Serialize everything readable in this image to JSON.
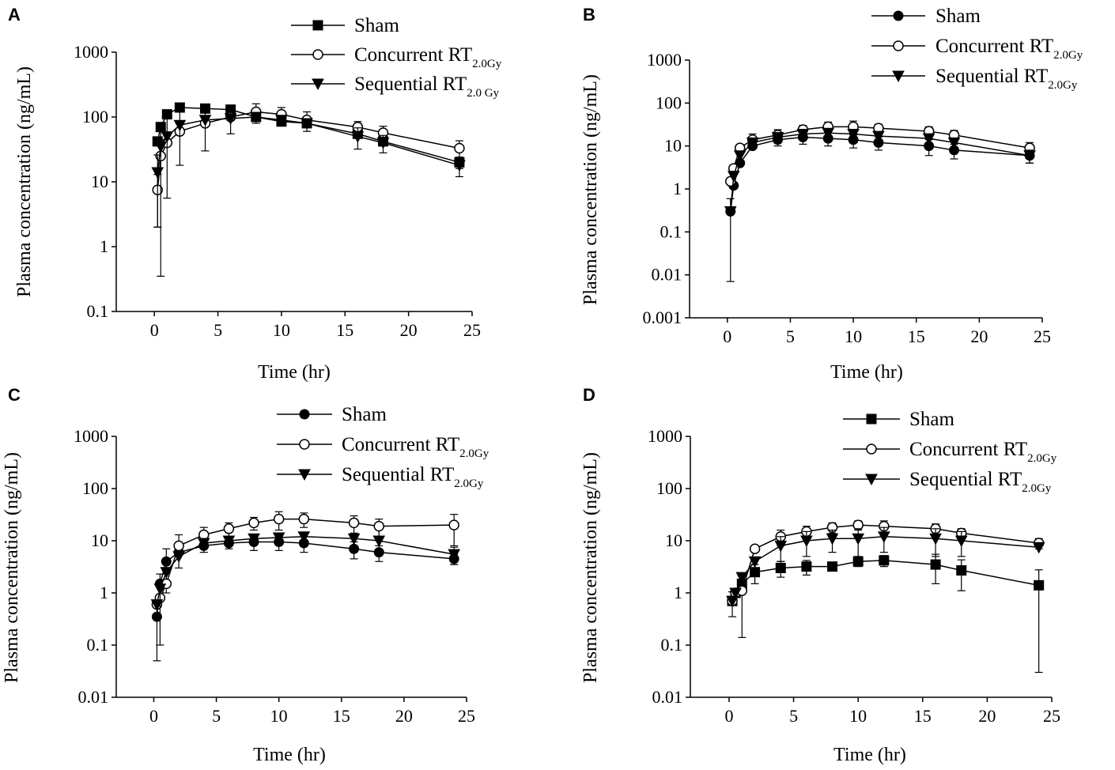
{
  "chart_data": [
    {
      "type": "line",
      "panel": "A",
      "xlabel": "Time (hr)",
      "ylabel": "Plasma concentration (ng/mL)",
      "yscale": "log",
      "xlim": [
        -3,
        25
      ],
      "xticks": [
        0,
        5,
        10,
        15,
        20,
        25
      ],
      "ylim": [
        0.1,
        1000
      ],
      "yticks": [
        "0.1",
        "1",
        "10",
        "100",
        "1000"
      ],
      "legend": [
        {
          "marker": "square",
          "text": "Sham",
          "sub": ""
        },
        {
          "marker": "circle-open",
          "text": "Concurrent RT",
          "sub": "2.0Gy"
        },
        {
          "marker": "triangle-down",
          "text": "Sequential RT",
          "sub": "2.0 Gy"
        }
      ],
      "series": [
        {
          "name": "Sham",
          "marker": "square",
          "x": [
            0.25,
            0.5,
            1,
            2,
            4,
            6,
            8,
            10,
            12,
            16,
            18,
            24
          ],
          "y": [
            42,
            70,
            110,
            140,
            135,
            130,
            100,
            85,
            80,
            55,
            42,
            20
          ],
          "err": [
            0,
            0,
            0,
            10,
            10,
            15,
            10,
            12,
            10,
            8,
            6,
            4
          ]
        },
        {
          "name": "Concurrent RT2.0Gy",
          "marker": "circle-open",
          "x": [
            0.25,
            0.5,
            1,
            2,
            4,
            6,
            8,
            10,
            12,
            16,
            18,
            24
          ],
          "y": [
            7.5,
            25,
            40,
            60,
            80,
            100,
            120,
            110,
            90,
            70,
            57,
            33
          ],
          "err": [
            5.5,
            0,
            0,
            0,
            0,
            0,
            40,
            30,
            30,
            15,
            15,
            10
          ]
        },
        {
          "name": "Sequential RT2.0 Gy",
          "marker": "triangle-down",
          "x": [
            0.25,
            0.5,
            1,
            2,
            4,
            6,
            8,
            10,
            12,
            16,
            18,
            24
          ],
          "y": [
            14,
            35,
            50,
            75,
            90,
            95,
            100,
            90,
            80,
            50,
            40,
            18
          ],
          "err": [
            12,
            34.65,
            44.4,
            57,
            60,
            40,
            0,
            0,
            0,
            18,
            12,
            6
          ]
        }
      ]
    },
    {
      "type": "line",
      "panel": "B",
      "xlabel": "Time (hr)",
      "ylabel": "Plasma concentration (ng/mL)",
      "yscale": "log",
      "xlim": [
        -3,
        25
      ],
      "xticks": [
        0,
        5,
        10,
        15,
        20,
        25
      ],
      "ylim": [
        0.001,
        1000
      ],
      "yticks": [
        "0.001",
        "0.01",
        "0.1",
        "1",
        "10",
        "100",
        "1000"
      ],
      "legend": [
        {
          "marker": "circle-filled",
          "text": "Sham",
          "sub": ""
        },
        {
          "marker": "circle-open",
          "text": "Concurrent RT",
          "sub": "2.0Gy"
        },
        {
          "marker": "triangle-down",
          "text": "Sequential RT",
          "sub": "2.0Gy"
        }
      ],
      "series": [
        {
          "name": "Sham",
          "marker": "circle-filled",
          "x": [
            0.25,
            0.5,
            1,
            2,
            4,
            6,
            8,
            10,
            12,
            16,
            18,
            24
          ],
          "y": [
            0.3,
            1.2,
            4,
            10,
            14,
            16,
            15,
            14,
            12,
            10,
            8,
            6
          ],
          "err": [
            0.293,
            0,
            0,
            0,
            4,
            5,
            5,
            5,
            4,
            4,
            3,
            2
          ]
        },
        {
          "name": "Concurrent RT2.0Gy",
          "marker": "circle-open",
          "x": [
            0.25,
            0.5,
            1,
            2,
            4,
            6,
            8,
            10,
            12,
            16,
            18,
            24
          ],
          "y": [
            1.5,
            3,
            9,
            14,
            18,
            24,
            28,
            28,
            26,
            22,
            18,
            9
          ],
          "err": [
            0,
            0,
            0,
            5,
            6,
            6,
            8,
            10,
            6,
            6,
            5,
            3
          ]
        },
        {
          "name": "Sequential RT2.0Gy",
          "marker": "triangle-down",
          "x": [
            0.25,
            0.5,
            1,
            2,
            4,
            6,
            8,
            10,
            12,
            16,
            18,
            24
          ],
          "y": [
            0.3,
            2,
            6,
            12,
            16,
            19,
            20,
            19,
            17,
            15,
            12,
            6
          ],
          "err": [
            0,
            0,
            0,
            0,
            0,
            0,
            0,
            0,
            0,
            0,
            0,
            2
          ]
        }
      ]
    },
    {
      "type": "line",
      "panel": "C",
      "xlabel": "Time (hr)",
      "ylabel": "Plasma concentration (ng/mL)",
      "yscale": "log",
      "xlim": [
        -3,
        25
      ],
      "xticks": [
        0,
        5,
        10,
        15,
        20,
        25
      ],
      "ylim": [
        0.01,
        1000
      ],
      "yticks": [
        "0.01",
        "0.1",
        "1",
        "10",
        "100",
        "1000"
      ],
      "legend": [
        {
          "marker": "circle-filled",
          "text": "Sham",
          "sub": ""
        },
        {
          "marker": "circle-open",
          "text": "Concurrent RT",
          "sub": "2.0Gy"
        },
        {
          "marker": "triangle-down",
          "text": "Sequential RT",
          "sub": "2.0Gy"
        }
      ],
      "series": [
        {
          "name": "Sham",
          "marker": "circle-filled",
          "x": [
            0.25,
            0.5,
            1,
            2,
            4,
            6,
            8,
            10,
            12,
            16,
            18,
            24
          ],
          "y": [
            0.35,
            1.5,
            4,
            6,
            8,
            9,
            9.5,
            9.5,
            9,
            7,
            6,
            4.5
          ],
          "err": [
            0.3,
            0,
            3,
            0,
            2,
            2,
            3,
            3,
            3,
            2.5,
            2,
            1
          ]
        },
        {
          "name": "Concurrent RT2.0Gy",
          "marker": "circle-open",
          "x": [
            0.25,
            0.5,
            1,
            2,
            4,
            6,
            8,
            10,
            12,
            16,
            18,
            24
          ],
          "y": [
            0.6,
            0.8,
            1.5,
            8,
            13,
            17,
            22,
            26,
            26,
            22,
            19,
            20
          ],
          "err": [
            0,
            0,
            0,
            5,
            5,
            5,
            6,
            10,
            8,
            8,
            7,
            12
          ]
        },
        {
          "name": "Sequential RT2.0Gy",
          "marker": "triangle-down",
          "x": [
            0.25,
            0.5,
            1,
            2,
            4,
            6,
            8,
            10,
            12,
            16,
            18,
            24
          ],
          "y": [
            0.6,
            1.2,
            2.5,
            5,
            9,
            10,
            11,
            11.5,
            12,
            11,
            10,
            5.5
          ],
          "err": [
            0,
            1.1,
            0,
            0,
            0,
            0,
            0,
            0,
            0,
            0,
            0,
            2
          ]
        }
      ]
    },
    {
      "type": "line",
      "panel": "D",
      "xlabel": "Time (hr)",
      "ylabel": "Plasma concentration (ng/mL)",
      "yscale": "log",
      "xlim": [
        -3,
        25
      ],
      "xticks": [
        0,
        5,
        10,
        15,
        20,
        25
      ],
      "ylim": [
        0.01,
        1000
      ],
      "yticks": [
        "0.01",
        "0.1",
        "1",
        "10",
        "100",
        "1000"
      ],
      "legend": [
        {
          "marker": "square",
          "text": "Sham",
          "sub": ""
        },
        {
          "marker": "circle-open",
          "text": "Concurrent RT",
          "sub": "2.0Gy"
        },
        {
          "marker": "triangle-down",
          "text": "Sequential RT",
          "sub": "2.0Gy"
        }
      ],
      "series": [
        {
          "name": "Sham",
          "marker": "square",
          "x": [
            0.25,
            0.5,
            1,
            2,
            4,
            6,
            8,
            10,
            12,
            16,
            18,
            24
          ],
          "y": [
            0.7,
            1,
            1.5,
            2.5,
            3,
            3.2,
            3.2,
            4,
            4.2,
            3.5,
            2.7,
            1.4
          ],
          "err": [
            0.35,
            0,
            0,
            1,
            1,
            1,
            0,
            0.8,
            1,
            2,
            1.6,
            1.37
          ]
        },
        {
          "name": "Concurrent RT2.0Gy",
          "marker": "circle-open",
          "x": [
            0.25,
            0.5,
            1,
            2,
            4,
            6,
            8,
            10,
            12,
            16,
            18,
            24
          ],
          "y": [
            0.7,
            1,
            1.1,
            7,
            12,
            15,
            18,
            20,
            19,
            17,
            14,
            9
          ],
          "err": [
            0,
            0,
            0.96,
            0,
            4,
            4,
            4,
            4,
            5,
            4,
            3,
            2
          ]
        },
        {
          "name": "Sequential RT2.0Gy",
          "marker": "triangle-down",
          "x": [
            0.25,
            0.5,
            1,
            2,
            4,
            6,
            8,
            10,
            12,
            16,
            18,
            24
          ],
          "y": [
            0.7,
            1,
            2,
            4,
            8,
            10,
            11,
            11,
            12,
            11,
            10,
            7.5
          ],
          "err": [
            0,
            0,
            0,
            0,
            4,
            5,
            5,
            6,
            6,
            6,
            5,
            0
          ]
        }
      ]
    }
  ]
}
